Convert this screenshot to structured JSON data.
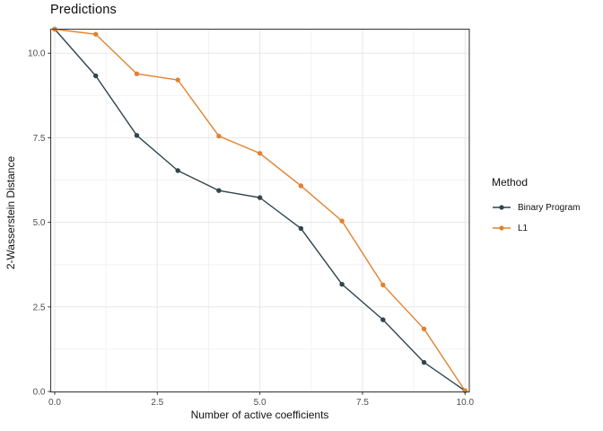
{
  "chart_title": "Predictions",
  "axes": {
    "x": {
      "label": "Number of active coefficients",
      "tick_labels": [
        "0.0",
        "2.5",
        "5.0",
        "7.5",
        "10.0"
      ],
      "tick_values": [
        0,
        2.5,
        5,
        7.5,
        10
      ]
    },
    "y": {
      "label": "2-Wasserstein Distance",
      "tick_labels": [
        "0.0",
        "2.5",
        "5.0",
        "7.5",
        "10.0"
      ],
      "tick_values": [
        0,
        2.5,
        5,
        7.5,
        10
      ]
    }
  },
  "legend": {
    "title": "Method",
    "items": [
      {
        "label": "Binary Program",
        "color": "#30454F"
      },
      {
        "label": "L1",
        "color": "#E0822F"
      }
    ]
  },
  "colors": {
    "binary_program": "#30454F",
    "l1": "#E0822F",
    "grid_major": "#e7e7e7",
    "grid_minor": "#f2f2f2",
    "panel_border": "#3E3E3E",
    "tick_mark": "#333333",
    "tick_label": "#4d4d4d"
  },
  "chart_data": {
    "type": "line",
    "title": "Predictions",
    "xlabel": "Number of active coefficients",
    "ylabel": "2-Wasserstein Distance",
    "x": [
      0,
      1,
      2,
      3,
      4,
      5,
      6,
      7,
      8,
      9,
      10
    ],
    "series": [
      {
        "name": "Binary Program",
        "color": "#30454F",
        "values": [
          10.71,
          9.33,
          7.57,
          6.53,
          5.94,
          5.73,
          4.82,
          3.17,
          2.12,
          0.86,
          0.02
        ]
      },
      {
        "name": "L1",
        "color": "#E0822F",
        "values": [
          10.71,
          10.56,
          9.39,
          9.21,
          7.55,
          7.04,
          6.08,
          5.04,
          3.15,
          1.85,
          0.02
        ]
      }
    ],
    "xlim": [
      -0.098,
      10.103
    ],
    "ylim": [
      -0.013,
      10.71
    ],
    "x_ticks": [
      0,
      2.5,
      5,
      7.5,
      10
    ],
    "y_ticks": [
      0,
      2.5,
      5,
      7.5,
      10
    ],
    "grid": true,
    "minor_grid": true,
    "legend_position": "right"
  }
}
